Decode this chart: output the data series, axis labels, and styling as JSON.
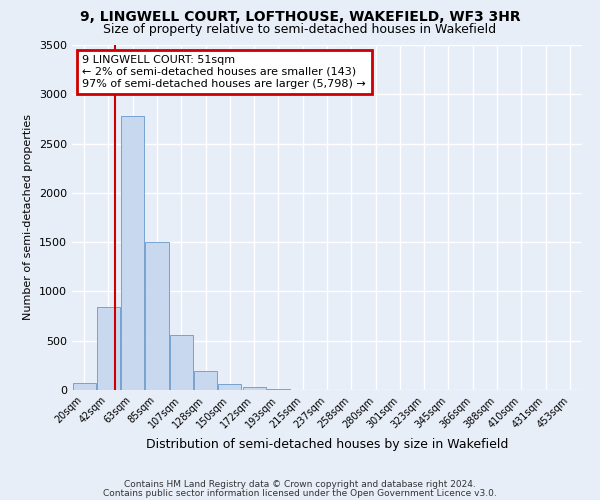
{
  "title": "9, LINGWELL COURT, LOFTHOUSE, WAKEFIELD, WF3 3HR",
  "subtitle": "Size of property relative to semi-detached houses in Wakefield",
  "xlabel": "Distribution of semi-detached houses by size in Wakefield",
  "ylabel": "Number of semi-detached properties",
  "categories": [
    "20sqm",
    "42sqm",
    "63sqm",
    "85sqm",
    "107sqm",
    "128sqm",
    "150sqm",
    "172sqm",
    "193sqm",
    "215sqm",
    "237sqm",
    "258sqm",
    "280sqm",
    "301sqm",
    "323sqm",
    "345sqm",
    "366sqm",
    "388sqm",
    "410sqm",
    "431sqm",
    "453sqm"
  ],
  "values": [
    70,
    840,
    2780,
    1500,
    560,
    190,
    60,
    30,
    10,
    0,
    0,
    0,
    0,
    0,
    0,
    0,
    0,
    0,
    0,
    0,
    0
  ],
  "bar_color": "#c8d8ef",
  "bar_edgecolor": "#6699cc",
  "vline_color": "#cc0000",
  "annotation_title": "9 LINGWELL COURT: 51sqm",
  "annotation_line1": "← 2% of semi-detached houses are smaller (143)",
  "annotation_line2": "97% of semi-detached houses are larger (5,798) →",
  "annotation_box_color": "#cc0000",
  "ylim": [
    0,
    3500
  ],
  "yticks": [
    0,
    500,
    1000,
    1500,
    2000,
    2500,
    3000,
    3500
  ],
  "footer1": "Contains HM Land Registry data © Crown copyright and database right 2024.",
  "footer2": "Contains public sector information licensed under the Open Government Licence v3.0.",
  "bg_color": "#e8eef8",
  "plot_bg_color": "#e8eef8"
}
